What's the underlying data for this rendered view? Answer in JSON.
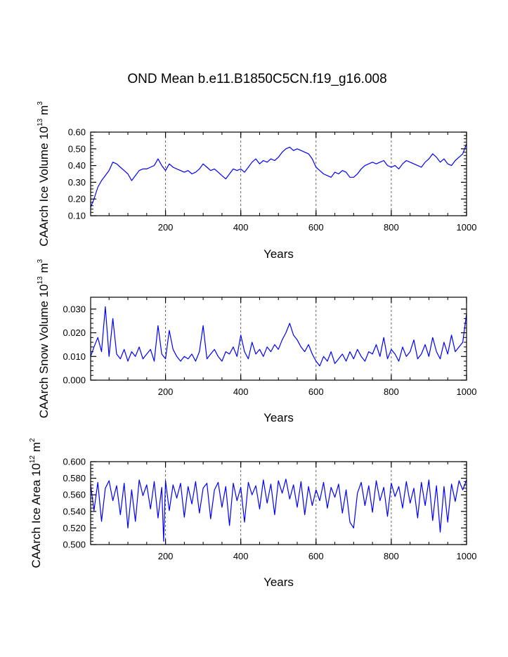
{
  "title": "OND Mean b.e11.B1850C5CN.f19_g16.008",
  "chart_data": [
    {
      "type": "line",
      "title": "OND Mean b.e11.B1850C5CN.f19_g16.008",
      "xlabel": "Years",
      "ylabel_main": "CAArch Ice Volume 10",
      "ylabel_exp": "13",
      "ylabel_unit": " m",
      "ylabel_unit_exp": "3",
      "xlim": [
        1,
        1000
      ],
      "ylim": [
        0.1,
        0.6
      ],
      "xticks": [
        200,
        400,
        600,
        800,
        1000
      ],
      "xtick_labels": [
        "200",
        "400",
        "600",
        "800",
        "1000"
      ],
      "yticks": [
        0.1,
        0.2,
        0.3,
        0.4,
        0.5,
        0.6
      ],
      "ytick_labels": [
        "0.10",
        "0.20",
        "0.30",
        "0.40",
        "0.50",
        "0.60"
      ],
      "grid": "vertical dashed at 200, 400, 600, 800",
      "line_color": "#0000ff",
      "series": [
        {
          "name": "CAArch Ice Volume",
          "x": [
            1,
            10,
            20,
            30,
            40,
            50,
            60,
            70,
            80,
            90,
            100,
            110,
            120,
            130,
            140,
            150,
            160,
            170,
            180,
            190,
            200,
            210,
            220,
            230,
            240,
            250,
            260,
            270,
            280,
            290,
            300,
            310,
            320,
            330,
            340,
            350,
            360,
            370,
            380,
            390,
            400,
            410,
            420,
            430,
            440,
            450,
            460,
            470,
            480,
            490,
            500,
            510,
            520,
            530,
            540,
            550,
            560,
            570,
            580,
            590,
            600,
            610,
            620,
            630,
            640,
            650,
            660,
            670,
            680,
            690,
            700,
            710,
            720,
            730,
            740,
            750,
            760,
            770,
            780,
            790,
            800,
            810,
            820,
            830,
            840,
            850,
            860,
            870,
            880,
            890,
            900,
            910,
            920,
            930,
            940,
            950,
            960,
            970,
            980,
            990,
            1000
          ],
          "values": [
            0.15,
            0.2,
            0.27,
            0.31,
            0.34,
            0.37,
            0.42,
            0.41,
            0.39,
            0.37,
            0.35,
            0.31,
            0.34,
            0.37,
            0.38,
            0.38,
            0.39,
            0.4,
            0.44,
            0.4,
            0.37,
            0.41,
            0.39,
            0.38,
            0.37,
            0.36,
            0.37,
            0.35,
            0.36,
            0.38,
            0.41,
            0.39,
            0.37,
            0.38,
            0.36,
            0.34,
            0.32,
            0.35,
            0.38,
            0.37,
            0.38,
            0.36,
            0.39,
            0.42,
            0.44,
            0.41,
            0.43,
            0.42,
            0.44,
            0.43,
            0.45,
            0.48,
            0.5,
            0.51,
            0.49,
            0.5,
            0.49,
            0.48,
            0.47,
            0.44,
            0.39,
            0.37,
            0.35,
            0.34,
            0.33,
            0.36,
            0.35,
            0.37,
            0.36,
            0.33,
            0.33,
            0.35,
            0.38,
            0.4,
            0.41,
            0.42,
            0.41,
            0.42,
            0.43,
            0.4,
            0.39,
            0.4,
            0.38,
            0.41,
            0.43,
            0.42,
            0.41,
            0.4,
            0.39,
            0.42,
            0.44,
            0.47,
            0.45,
            0.42,
            0.44,
            0.41,
            0.4,
            0.43,
            0.45,
            0.47,
            0.53
          ]
        }
      ]
    },
    {
      "type": "line",
      "xlabel": "Years",
      "ylabel_main": "CAArch Snow Volume 10",
      "ylabel_exp": "13",
      "ylabel_unit": " m",
      "ylabel_unit_exp": "3",
      "xlim": [
        1,
        1000
      ],
      "ylim": [
        0.0,
        0.035
      ],
      "xticks": [
        200,
        400,
        600,
        800,
        1000
      ],
      "xtick_labels": [
        "200",
        "400",
        "600",
        "800",
        "1000"
      ],
      "yticks": [
        0.0,
        0.01,
        0.02,
        0.03
      ],
      "ytick_labels": [
        "0.000",
        "0.010",
        "0.020",
        "0.030"
      ],
      "grid": "vertical dashed at 200, 400, 600, 800",
      "line_color": "#0000ff",
      "series": [
        {
          "name": "CAArch Snow Volume",
          "x": [
            1,
            10,
            20,
            30,
            40,
            50,
            60,
            70,
            80,
            90,
            100,
            110,
            120,
            130,
            140,
            150,
            160,
            170,
            180,
            190,
            200,
            210,
            220,
            230,
            240,
            250,
            260,
            270,
            280,
            290,
            300,
            310,
            320,
            330,
            340,
            350,
            360,
            370,
            380,
            390,
            400,
            410,
            420,
            430,
            440,
            450,
            460,
            470,
            480,
            490,
            500,
            510,
            520,
            530,
            540,
            550,
            560,
            570,
            580,
            590,
            600,
            610,
            620,
            630,
            640,
            650,
            660,
            670,
            680,
            690,
            700,
            710,
            720,
            730,
            740,
            750,
            760,
            770,
            780,
            790,
            800,
            810,
            820,
            830,
            840,
            850,
            860,
            870,
            880,
            890,
            900,
            910,
            920,
            930,
            940,
            950,
            960,
            970,
            980,
            990,
            1000
          ],
          "values": [
            0.01,
            0.014,
            0.018,
            0.012,
            0.031,
            0.01,
            0.026,
            0.011,
            0.009,
            0.013,
            0.008,
            0.012,
            0.01,
            0.014,
            0.009,
            0.011,
            0.013,
            0.008,
            0.023,
            0.011,
            0.009,
            0.021,
            0.013,
            0.01,
            0.008,
            0.01,
            0.009,
            0.011,
            0.008,
            0.012,
            0.023,
            0.009,
            0.011,
            0.013,
            0.01,
            0.008,
            0.012,
            0.011,
            0.014,
            0.01,
            0.019,
            0.012,
            0.009,
            0.016,
            0.011,
            0.013,
            0.01,
            0.014,
            0.012,
            0.015,
            0.013,
            0.017,
            0.02,
            0.024,
            0.019,
            0.017,
            0.014,
            0.012,
            0.015,
            0.011,
            0.008,
            0.006,
            0.01,
            0.008,
            0.012,
            0.007,
            0.009,
            0.011,
            0.008,
            0.012,
            0.009,
            0.013,
            0.01,
            0.008,
            0.012,
            0.011,
            0.015,
            0.01,
            0.018,
            0.009,
            0.013,
            0.011,
            0.008,
            0.014,
            0.01,
            0.012,
            0.017,
            0.009,
            0.011,
            0.015,
            0.01,
            0.018,
            0.012,
            0.009,
            0.016,
            0.011,
            0.019,
            0.012,
            0.014,
            0.016,
            0.028
          ]
        }
      ]
    },
    {
      "type": "line",
      "xlabel": "Years",
      "ylabel_main": "CAArch Ice Area 10",
      "ylabel_exp": "12",
      "ylabel_unit": " m",
      "ylabel_unit_exp": "2",
      "xlim": [
        1,
        1000
      ],
      "ylim": [
        0.5,
        0.6
      ],
      "xticks": [
        200,
        400,
        600,
        800,
        1000
      ],
      "xtick_labels": [
        "200",
        "400",
        "600",
        "800",
        "1000"
      ],
      "yticks": [
        0.5,
        0.52,
        0.54,
        0.56,
        0.58,
        0.6
      ],
      "ytick_labels": [
        "0.500",
        "0.520",
        "0.540",
        "0.560",
        "0.580",
        "0.600"
      ],
      "grid": "vertical dashed at 200, 400, 600, 800",
      "line_color": "#0000ff",
      "series": [
        {
          "name": "CAArch Ice Area",
          "x": [
            1,
            10,
            20,
            30,
            40,
            50,
            60,
            70,
            80,
            90,
            100,
            110,
            120,
            130,
            140,
            150,
            160,
            170,
            180,
            190,
            195,
            200,
            210,
            220,
            230,
            240,
            250,
            260,
            270,
            280,
            290,
            300,
            310,
            320,
            330,
            340,
            350,
            360,
            370,
            380,
            390,
            400,
            410,
            420,
            430,
            440,
            450,
            460,
            470,
            480,
            490,
            500,
            510,
            520,
            530,
            540,
            550,
            560,
            570,
            580,
            590,
            600,
            610,
            620,
            630,
            640,
            650,
            660,
            670,
            680,
            690,
            700,
            710,
            720,
            730,
            740,
            750,
            760,
            770,
            780,
            790,
            800,
            810,
            820,
            830,
            840,
            850,
            860,
            870,
            880,
            890,
            900,
            910,
            920,
            930,
            940,
            950,
            960,
            970,
            980,
            990,
            1000
          ],
          "values": [
            0.572,
            0.541,
            0.575,
            0.528,
            0.568,
            0.577,
            0.553,
            0.571,
            0.536,
            0.574,
            0.52,
            0.566,
            0.528,
            0.578,
            0.559,
            0.572,
            0.543,
            0.576,
            0.532,
            0.569,
            0.504,
            0.577,
            0.541,
            0.572,
            0.556,
            0.574,
            0.533,
            0.57,
            0.549,
            0.576,
            0.538,
            0.568,
            0.574,
            0.531,
            0.566,
            0.575,
            0.545,
            0.57,
            0.523,
            0.574,
            0.553,
            0.569,
            0.527,
            0.575,
            0.56,
            0.571,
            0.543,
            0.578,
            0.55,
            0.573,
            0.536,
            0.577,
            0.562,
            0.579,
            0.555,
            0.572,
            0.545,
            0.576,
            0.536,
            0.57,
            0.547,
            0.566,
            0.553,
            0.575,
            0.544,
            0.569,
            0.557,
            0.573,
            0.538,
            0.566,
            0.527,
            0.52,
            0.562,
            0.575,
            0.547,
            0.571,
            0.539,
            0.577,
            0.553,
            0.569,
            0.534,
            0.574,
            0.558,
            0.57,
            0.544,
            0.576,
            0.55,
            0.568,
            0.532,
            0.575,
            0.547,
            0.578,
            0.529,
            0.571,
            0.515,
            0.57,
            0.527,
            0.573,
            0.552,
            0.577,
            0.566,
            0.578
          ]
        }
      ]
    }
  ]
}
